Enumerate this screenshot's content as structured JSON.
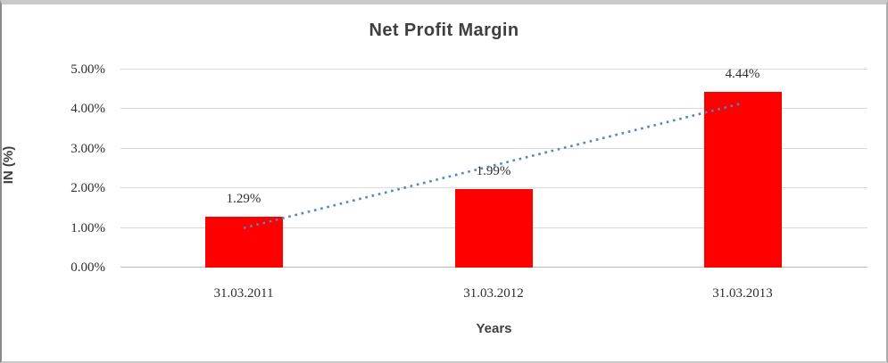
{
  "chart": {
    "title": "Net Profit Margin",
    "y_axis": {
      "title": "IN (%)"
    },
    "x_axis": {
      "title": "Years"
    }
  },
  "chart_data": {
    "type": "bar",
    "title": "Net Profit Margin",
    "categories": [
      "31.03.2011",
      "31.03.2012",
      "31.03.2013"
    ],
    "values": [
      1.29,
      1.99,
      4.44
    ],
    "data_labels": [
      "1.29%",
      "1.99%",
      "4.44%"
    ],
    "xlabel": "Years",
    "ylabel": "IN (%)",
    "ylim": [
      0,
      5
    ],
    "y_tick_step": 1,
    "y_tick_labels": [
      "0.00%",
      "1.00%",
      "2.00%",
      "3.00%",
      "4.00%",
      "5.00%"
    ],
    "grid": true,
    "legend": false,
    "bar_color": "#FF0000",
    "gridline_color": "#D9D9D9",
    "trendline": {
      "style": "dotted",
      "color": "#4E86C8",
      "start_value": 1.0,
      "end_value": 4.15
    }
  }
}
